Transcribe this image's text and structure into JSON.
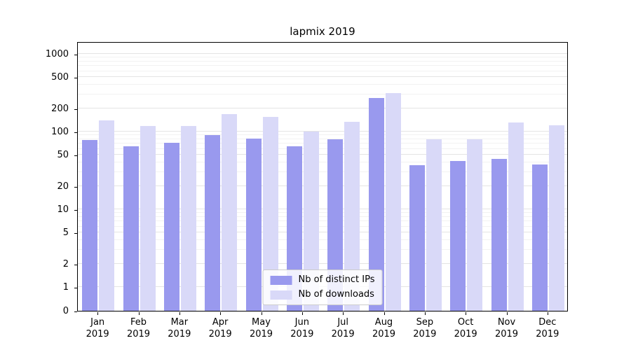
{
  "chart_data": {
    "type": "bar",
    "title": "lapmix 2019",
    "yscale": "log",
    "grid": true,
    "ylim": [
      0,
      1000
    ],
    "y_ticks": [
      0,
      1,
      2,
      5,
      10,
      20,
      50,
      100,
      200,
      500,
      1000
    ],
    "legend_position": "lower center",
    "categories": [
      "Jan",
      "Feb",
      "Mar",
      "Apr",
      "May",
      "Jun",
      "Jul",
      "Aug",
      "Sep",
      "Oct",
      "Nov",
      "Dec"
    ],
    "year": "2019",
    "x_tick_labels": [
      "Jan 2019",
      "Feb 2019",
      "Mar 2019",
      "Apr 2019",
      "May 2019",
      "Jun 2019",
      "Jul 2019",
      "Aug 2019",
      "Sep 2019",
      "Oct 2019",
      "Nov 2019",
      "Dec 2019"
    ],
    "series": [
      {
        "name": "Nb of distinct IPs",
        "color": "#9999ee",
        "values": [
          78,
          65,
          72,
          90,
          82,
          65,
          79,
          270,
          37,
          42,
          45,
          38
        ]
      },
      {
        "name": "Nb of downloads",
        "color": "#d9d9f8",
        "values": [
          140,
          118,
          117,
          168,
          155,
          101,
          133,
          310,
          79,
          79,
          131,
          121
        ]
      }
    ]
  }
}
